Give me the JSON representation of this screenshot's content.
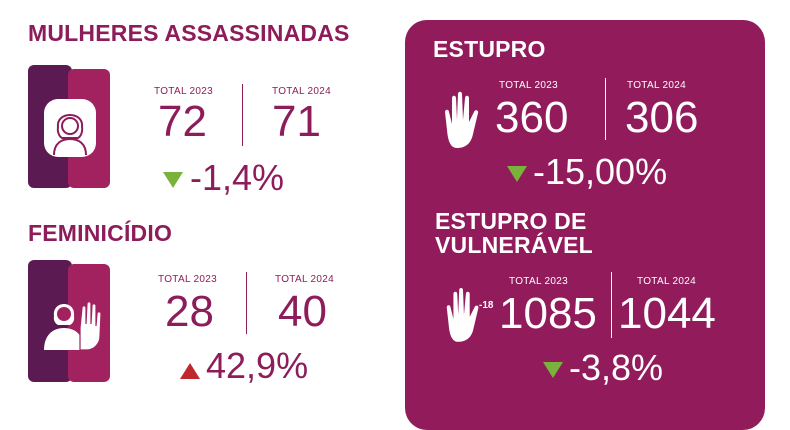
{
  "colors": {
    "primary": "#8c1d5a",
    "panel": "#921c5b",
    "bar_dark": "#5c1a52",
    "bar_light": "#a2225f",
    "down_arrow": "#7ab33b",
    "up_arrow": "#c0272d"
  },
  "mulheres": {
    "title": "MULHERES ASSASSINADAS",
    "label_2023": "TOTAL 2023",
    "label_2024": "TOTAL 2024",
    "value_2023": "72",
    "value_2024": "71",
    "change": "-1,4%",
    "change_direction": "down",
    "icon": "woman-icon"
  },
  "feminicidio": {
    "title": "FEMINICÍDIO",
    "label_2023": "TOTAL 2023",
    "label_2024": "TOTAL  2024",
    "value_2023": "28",
    "value_2024": "40",
    "change": "42,9%",
    "change_direction": "up",
    "icon": "woman-stop-hand-icon"
  },
  "estupro": {
    "title": "ESTUPRO",
    "label_2023": "TOTAL 2023",
    "label_2024": "TOTAL  2024",
    "value_2023": "360",
    "value_2024": "306",
    "change": "-15,00%",
    "change_direction": "down",
    "icon": "hand-icon"
  },
  "vulneravel": {
    "title_line1": "ESTUPRO DE",
    "title_line2": "VULNERÁVEL",
    "label_2023": "TOTAL 2023",
    "label_2024": "TOTAL  2024",
    "value_2023": "1085",
    "value_2024": "1044",
    "change": "-3,8%",
    "change_direction": "down",
    "age_badge": "-18",
    "icon": "hand-under-18-icon"
  }
}
